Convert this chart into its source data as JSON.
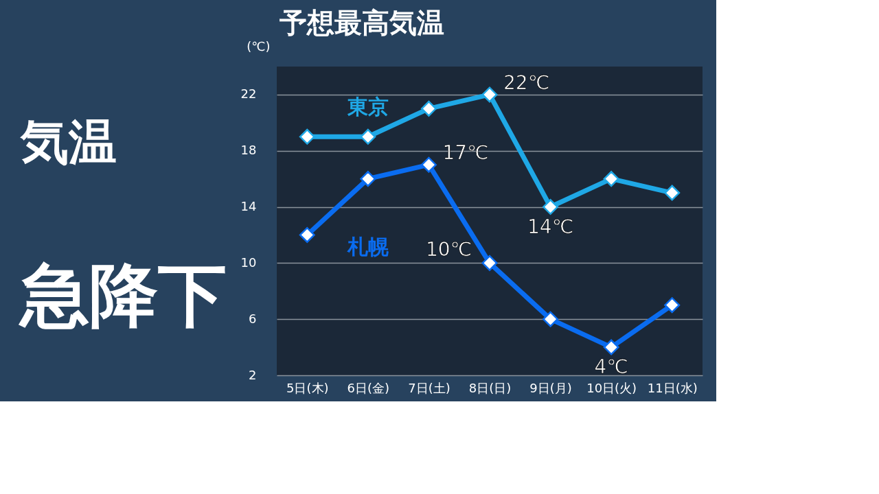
{
  "chart_data": {
    "type": "line",
    "title": "予想最高気温",
    "ylabel": "(℃)",
    "categories": [
      "5日(木)",
      "6日(金)",
      "7日(土)",
      "8日(日)",
      "9日(月)",
      "10日(火)",
      "11日(水)"
    ],
    "series": [
      {
        "name": "東京",
        "color": "#1fa8e6",
        "values": [
          19,
          19,
          21,
          22,
          14,
          16,
          15
        ],
        "value_labels": [
          null,
          null,
          null,
          "22℃",
          "14℃",
          null,
          null
        ]
      },
      {
        "name": "札幌",
        "color": "#0a6cf0",
        "values": [
          12,
          16,
          17,
          10,
          6,
          4,
          7
        ],
        "value_labels": [
          null,
          null,
          "17℃",
          "10℃",
          null,
          "4℃",
          null
        ]
      }
    ],
    "ylim": [
      2,
      24
    ],
    "yticks": [
      2,
      6,
      10,
      14,
      18,
      22
    ],
    "grid": "y",
    "marker": "diamond",
    "line_style": "solid",
    "annotations": [
      "気温",
      "急降下"
    ]
  }
}
